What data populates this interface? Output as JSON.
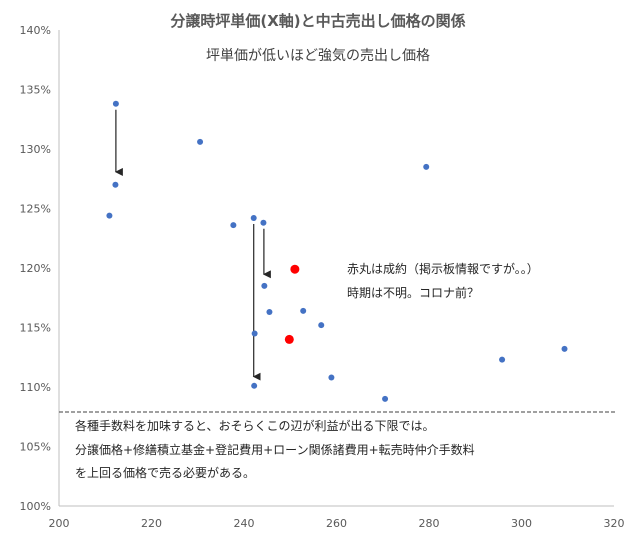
{
  "chart_data": {
    "type": "scatter",
    "title": "分譲時坪単価(X軸)と中古売出し価格の関係",
    "subtitle": "坪単価が低いほど強気の売出し価格",
    "xlim": [
      200,
      320
    ],
    "ylim": [
      1.0,
      1.4
    ],
    "x_ticks": [
      200,
      220,
      240,
      260,
      280,
      300,
      320
    ],
    "x_tick_labels": [
      "200",
      "220",
      "240",
      "260",
      "280",
      "300",
      "320"
    ],
    "y_ticks": [
      1.0,
      1.05,
      1.1,
      1.15,
      1.2,
      1.25,
      1.3,
      1.35,
      1.4
    ],
    "y_tick_labels": [
      "100%",
      "105%",
      "110%",
      "115%",
      "120%",
      "125%",
      "130%",
      "135%",
      "140%"
    ],
    "grid": false,
    "series": [
      {
        "color": "#4472c4",
        "points": [
          {
            "x": 212.3,
            "y": 1.338
          },
          {
            "x": 212.2,
            "y": 1.27
          },
          {
            "x": 210.9,
            "y": 1.244
          },
          {
            "x": 230.5,
            "y": 1.306
          },
          {
            "x": 237.7,
            "y": 1.236
          },
          {
            "x": 242.1,
            "y": 1.242
          },
          {
            "x": 244.2,
            "y": 1.238
          },
          {
            "x": 244.4,
            "y": 1.185
          },
          {
            "x": 242.3,
            "y": 1.145
          },
          {
            "x": 245.5,
            "y": 1.163
          },
          {
            "x": 252.8,
            "y": 1.164
          },
          {
            "x": 256.7,
            "y": 1.152
          },
          {
            "x": 242.2,
            "y": 1.101
          },
          {
            "x": 258.9,
            "y": 1.108
          },
          {
            "x": 270.5,
            "y": 1.09
          },
          {
            "x": 279.4,
            "y": 1.285
          },
          {
            "x": 295.8,
            "y": 1.123
          },
          {
            "x": 309.3,
            "y": 1.132
          }
        ]
      },
      {
        "color": "#ff0000",
        "points": [
          {
            "x": 251.0,
            "y": 1.199
          },
          {
            "x": 249.8,
            "y": 1.14
          }
        ]
      }
    ],
    "arrows": [
      {
        "x": 212.3,
        "y_from": 1.333,
        "y_to": 1.274
      },
      {
        "x": 242.1,
        "y_from": 1.237,
        "y_to": 1.102
      },
      {
        "x": 244.3,
        "y_from": 1.233,
        "y_to": 1.188
      }
    ],
    "threshold_line": {
      "y": 1.079,
      "style": "dashed"
    },
    "annotations": {
      "red_note_line1": "赤丸は成約（掲示板情報ですが。。）",
      "red_note_line2": "時期は不明。コロナ前？",
      "bottom_line1": "各種手数料を加味すると、おそらくこの辺が利益が出る下限では。",
      "bottom_line2": "分譲価格+修繕積立基金+登記費用+ローン関係諸費用+転売時仲介手数料",
      "bottom_line3": "を上回る価格で売る必要がある。"
    }
  }
}
